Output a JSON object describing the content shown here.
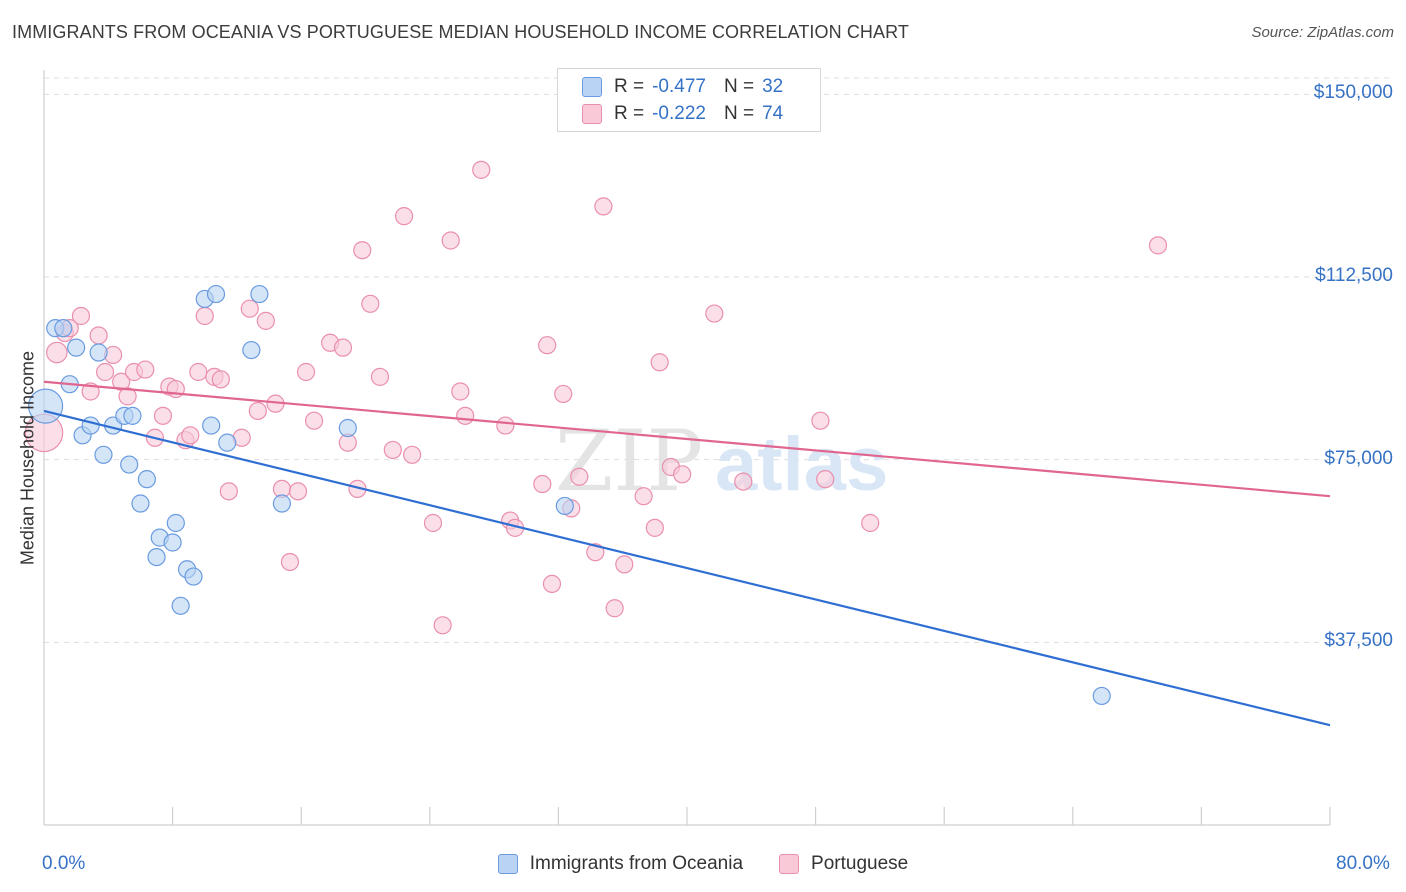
{
  "title": "IMMIGRANTS FROM OCEANIA VS PORTUGUESE MEDIAN HOUSEHOLD INCOME CORRELATION CHART",
  "source": "Source: ZipAtlas.com",
  "watermark": {
    "zip": "ZIP",
    "atlas": "atlas"
  },
  "legend_top": [
    {
      "r_label": "R =",
      "r_value": "-0.477",
      "n_label": "N =",
      "n_value": "32"
    },
    {
      "r_label": "R =",
      "r_value": "-0.222",
      "n_label": "N =",
      "n_value": "74"
    }
  ],
  "legend_bottom": [
    "Immigrants from Oceania",
    "Portuguese"
  ],
  "colors": {
    "oceania_fill": "#b8d3f3",
    "oceania_stroke": "#6a9be0",
    "oceania_line": "#2f6fd3",
    "portuguese_fill": "#f9c9d8",
    "portuguese_stroke": "#ea8fae",
    "portuguese_line": "#e06690",
    "axis_label": "#3572c6",
    "grid": "#dddddd"
  },
  "chart_data": {
    "type": "scatter",
    "xlabel": "",
    "ylabel": "Median Household Income",
    "xlim": [
      0,
      80
    ],
    "ylim": [
      0,
      155000
    ],
    "x_tick_labels": [
      "0.0%",
      "80.0%"
    ],
    "y_ticks": [
      37500,
      75000,
      112500,
      150000
    ],
    "y_tick_labels": [
      "$37,500",
      "$75,000",
      "$112,500",
      "$150,000"
    ],
    "grid": "horizontal dashed",
    "legend_position": "top-center",
    "series": [
      {
        "name": "Immigrants from Oceania",
        "points": [
          [
            0.1,
            86000,
            2
          ],
          [
            0.7,
            102000,
            1
          ],
          [
            1.2,
            102000,
            1
          ],
          [
            1.6,
            90500,
            1
          ],
          [
            2.0,
            98000,
            1
          ],
          [
            2.4,
            80000,
            1
          ],
          [
            2.9,
            82000,
            1
          ],
          [
            3.4,
            97000,
            1
          ],
          [
            3.7,
            76000,
            1
          ],
          [
            4.3,
            82000,
            1
          ],
          [
            5.0,
            84000,
            1
          ],
          [
            5.3,
            74000,
            1
          ],
          [
            5.5,
            84000,
            1
          ],
          [
            6.0,
            66000,
            1
          ],
          [
            6.4,
            71000,
            1
          ],
          [
            7.0,
            55000,
            1
          ],
          [
            7.2,
            59000,
            1
          ],
          [
            8.0,
            58000,
            1
          ],
          [
            8.2,
            62000,
            1
          ],
          [
            8.5,
            45000,
            1
          ],
          [
            8.9,
            52500,
            1
          ],
          [
            9.3,
            51000,
            1
          ],
          [
            10.0,
            108000,
            1
          ],
          [
            10.4,
            82000,
            1
          ],
          [
            10.7,
            109000,
            1
          ],
          [
            11.4,
            78500,
            1
          ],
          [
            12.9,
            97500,
            1
          ],
          [
            13.4,
            109000,
            1
          ],
          [
            14.8,
            66000,
            1
          ],
          [
            18.9,
            81500,
            1
          ],
          [
            32.4,
            65500,
            1
          ],
          [
            65.8,
            26500,
            1
          ]
        ],
        "trend": {
          "x": [
            0,
            80
          ],
          "y": [
            85000,
            20500
          ]
        }
      },
      {
        "name": "Portuguese",
        "points": [
          [
            0.0,
            80500,
            2.2
          ],
          [
            0.8,
            97000,
            1.2
          ],
          [
            1.3,
            101000,
            1
          ],
          [
            1.6,
            102000,
            1
          ],
          [
            2.3,
            104500,
            1
          ],
          [
            2.9,
            89000,
            1
          ],
          [
            3.4,
            100500,
            1
          ],
          [
            3.8,
            93000,
            1
          ],
          [
            4.3,
            96500,
            1
          ],
          [
            4.8,
            91000,
            1
          ],
          [
            5.2,
            88000,
            1
          ],
          [
            5.6,
            93000,
            1
          ],
          [
            6.3,
            93500,
            1
          ],
          [
            6.9,
            79500,
            1
          ],
          [
            7.4,
            84000,
            1
          ],
          [
            7.8,
            90000,
            1
          ],
          [
            8.2,
            89500,
            1
          ],
          [
            8.8,
            79000,
            1
          ],
          [
            9.1,
            80000,
            1
          ],
          [
            9.6,
            93000,
            1
          ],
          [
            10.0,
            104500,
            1
          ],
          [
            10.6,
            92000,
            1
          ],
          [
            11.0,
            91500,
            1
          ],
          [
            11.5,
            68500,
            1
          ],
          [
            12.3,
            79500,
            1
          ],
          [
            12.8,
            106000,
            1
          ],
          [
            13.3,
            85000,
            1
          ],
          [
            13.8,
            103500,
            1
          ],
          [
            14.4,
            86500,
            1
          ],
          [
            14.8,
            69000,
            1
          ],
          [
            15.3,
            54000,
            1
          ],
          [
            15.8,
            68500,
            1
          ],
          [
            16.3,
            93000,
            1
          ],
          [
            16.8,
            83000,
            1
          ],
          [
            17.8,
            99000,
            1
          ],
          [
            18.6,
            98000,
            1
          ],
          [
            18.9,
            78500,
            1
          ],
          [
            19.5,
            69000,
            1
          ],
          [
            19.8,
            118000,
            1
          ],
          [
            20.3,
            107000,
            1
          ],
          [
            20.9,
            92000,
            1
          ],
          [
            21.7,
            77000,
            1
          ],
          [
            22.4,
            125000,
            1
          ],
          [
            22.9,
            76000,
            1
          ],
          [
            24.2,
            62000,
            1
          ],
          [
            24.8,
            41000,
            1
          ],
          [
            25.3,
            120000,
            1
          ],
          [
            25.9,
            89000,
            1
          ],
          [
            26.2,
            84000,
            1
          ],
          [
            27.2,
            134500,
            1
          ],
          [
            28.7,
            82000,
            1
          ],
          [
            29.0,
            62500,
            1
          ],
          [
            29.3,
            61000,
            1
          ],
          [
            31.0,
            70000,
            1
          ],
          [
            31.3,
            98500,
            1
          ],
          [
            31.6,
            49500,
            1
          ],
          [
            32.3,
            88500,
            1
          ],
          [
            32.8,
            65000,
            1
          ],
          [
            33.3,
            71500,
            1
          ],
          [
            34.3,
            56000,
            1
          ],
          [
            34.8,
            127000,
            1
          ],
          [
            35.5,
            44500,
            1
          ],
          [
            36.1,
            53500,
            1
          ],
          [
            37.3,
            67500,
            1
          ],
          [
            38.0,
            61000,
            1
          ],
          [
            38.3,
            95000,
            1
          ],
          [
            39.0,
            73500,
            1
          ],
          [
            39.7,
            72000,
            1
          ],
          [
            41.7,
            105000,
            1
          ],
          [
            43.5,
            70500,
            1
          ],
          [
            48.3,
            83000,
            1
          ],
          [
            48.6,
            71000,
            1
          ],
          [
            51.4,
            62000,
            1
          ],
          [
            69.3,
            119000,
            1
          ]
        ],
        "trend": {
          "x": [
            0,
            80
          ],
          "y": [
            91000,
            67500
          ]
        }
      }
    ]
  }
}
